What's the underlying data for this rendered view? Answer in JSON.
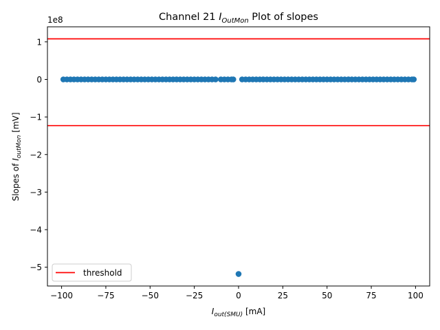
{
  "chart_data": {
    "type": "scatter",
    "title_prefix": "Channel 21 ",
    "title_sub_main": "I",
    "title_sub": "OutMon",
    "title_suffix": " Plot of slopes",
    "xlabel_main": "I",
    "xlabel_sub": "out(SMU)",
    "xlabel_suffix": " [mA]",
    "ylabel_prefix": "Slopes of ",
    "ylabel_main": "I",
    "ylabel_sub": "outMon",
    "ylabel_suffix": " [mV]",
    "y_offset_text": "1e8",
    "xlim": [
      -108,
      108
    ],
    "ylim": [
      -5.5,
      1.4
    ],
    "y_scale_exponent": 8,
    "xticks": [
      -100,
      -75,
      -50,
      -25,
      0,
      25,
      50,
      75,
      100
    ],
    "xtick_labels": [
      "−100",
      "−75",
      "−50",
      "−25",
      "0",
      "25",
      "50",
      "75",
      "100"
    ],
    "yticks": [
      1,
      0,
      -1,
      -2,
      -3,
      -4,
      -5
    ],
    "ytick_labels": [
      "1",
      "0",
      "−1",
      "−2",
      "−3",
      "−4",
      "−5"
    ],
    "thresholds": [
      1.08,
      -1.23
    ],
    "series_color": "#1f77b4",
    "threshold_color": "#ff0000",
    "legend": {
      "label": "threshold",
      "placement": "lower-left"
    },
    "points": [
      [
        -99,
        0
      ],
      [
        -97,
        0
      ],
      [
        -95,
        0
      ],
      [
        -93,
        0
      ],
      [
        -91,
        0
      ],
      [
        -89,
        0
      ],
      [
        -87,
        0
      ],
      [
        -85,
        0
      ],
      [
        -83,
        0
      ],
      [
        -81,
        0
      ],
      [
        -79,
        0
      ],
      [
        -77,
        0
      ],
      [
        -75,
        0
      ],
      [
        -73,
        0
      ],
      [
        -71,
        0
      ],
      [
        -69,
        0
      ],
      [
        -67,
        0
      ],
      [
        -65,
        0
      ],
      [
        -63,
        0
      ],
      [
        -61,
        0
      ],
      [
        -59,
        0
      ],
      [
        -57,
        0
      ],
      [
        -55,
        0
      ],
      [
        -53,
        0
      ],
      [
        -51,
        0
      ],
      [
        -49,
        0
      ],
      [
        -47,
        0
      ],
      [
        -45,
        0
      ],
      [
        -43,
        0
      ],
      [
        -41,
        0
      ],
      [
        -39,
        0
      ],
      [
        -37,
        0
      ],
      [
        -35,
        0
      ],
      [
        -33,
        0
      ],
      [
        -31,
        0
      ],
      [
        -29,
        0
      ],
      [
        -27,
        0
      ],
      [
        -25,
        0
      ],
      [
        -23,
        0
      ],
      [
        -21,
        0
      ],
      [
        -19,
        0
      ],
      [
        -17,
        0
      ],
      [
        -15,
        0
      ],
      [
        -13,
        0
      ],
      [
        -10,
        0
      ],
      [
        -8,
        0
      ],
      [
        -6,
        0
      ],
      [
        -4,
        0
      ],
      [
        -3,
        0
      ],
      [
        0,
        -5.18
      ],
      [
        2,
        0
      ],
      [
        4,
        0
      ],
      [
        6,
        0
      ],
      [
        8,
        0
      ],
      [
        10,
        0
      ],
      [
        12,
        0
      ],
      [
        14,
        0
      ],
      [
        16,
        0
      ],
      [
        18,
        0
      ],
      [
        20,
        0
      ],
      [
        22,
        0
      ],
      [
        24,
        0
      ],
      [
        26,
        0
      ],
      [
        28,
        0
      ],
      [
        30,
        0
      ],
      [
        32,
        0
      ],
      [
        34,
        0
      ],
      [
        36,
        0
      ],
      [
        38,
        0
      ],
      [
        40,
        0
      ],
      [
        42,
        0
      ],
      [
        44,
        0
      ],
      [
        46,
        0
      ],
      [
        48,
        0
      ],
      [
        50,
        0
      ],
      [
        52,
        0
      ],
      [
        54,
        0
      ],
      [
        56,
        0
      ],
      [
        58,
        0
      ],
      [
        60,
        0
      ],
      [
        62,
        0
      ],
      [
        64,
        0
      ],
      [
        66,
        0
      ],
      [
        68,
        0
      ],
      [
        70,
        0
      ],
      [
        72,
        0
      ],
      [
        74,
        0
      ],
      [
        76,
        0
      ],
      [
        78,
        0
      ],
      [
        80,
        0
      ],
      [
        82,
        0
      ],
      [
        84,
        0
      ],
      [
        86,
        0
      ],
      [
        88,
        0
      ],
      [
        90,
        0
      ],
      [
        92,
        0
      ],
      [
        94,
        0
      ],
      [
        96,
        0
      ],
      [
        98,
        0
      ],
      [
        99,
        0
      ]
    ]
  }
}
